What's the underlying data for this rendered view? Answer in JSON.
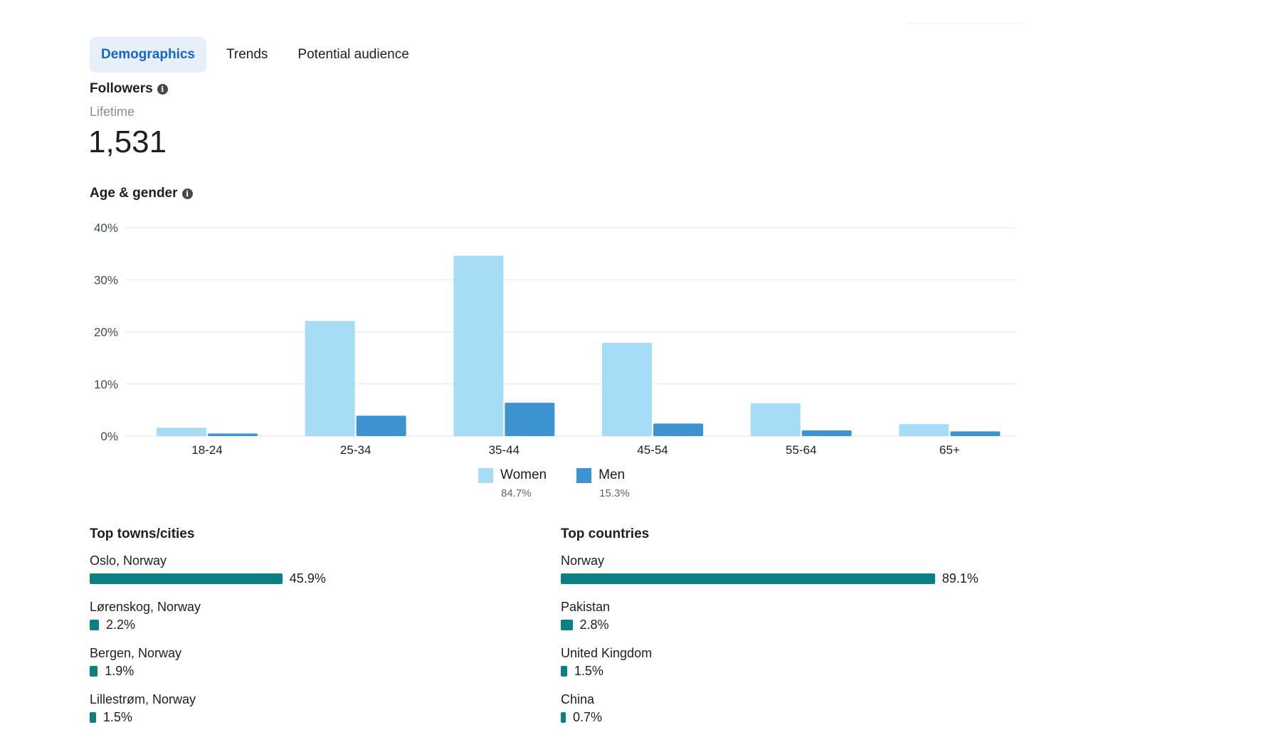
{
  "tabs": [
    {
      "label": "Demographics",
      "active": true
    },
    {
      "label": "Trends",
      "active": false
    },
    {
      "label": "Potential audience",
      "active": false
    }
  ],
  "followers": {
    "title": "Followers",
    "period": "Lifetime",
    "value": "1,531"
  },
  "age_gender": {
    "title": "Age & gender"
  },
  "chart_data": {
    "type": "bar",
    "categories": [
      "18-24",
      "25-34",
      "35-44",
      "45-54",
      "55-64",
      "65+"
    ],
    "series": [
      {
        "name": "Women",
        "share": "84.7%",
        "color": "#a7dcf6",
        "values": [
          1.6,
          22.1,
          34.6,
          17.9,
          6.3,
          2.3
        ]
      },
      {
        "name": "Men",
        "share": "15.3%",
        "color": "#3d93cf",
        "values": [
          0.5,
          3.9,
          6.4,
          2.4,
          1.1,
          0.9
        ]
      }
    ],
    "yticks": [
      "0%",
      "10%",
      "20%",
      "30%",
      "40%"
    ],
    "ylim": [
      0,
      40
    ],
    "grid": true,
    "legend": "bottom-center"
  },
  "top_cities": {
    "title": "Top towns/cities",
    "items": [
      {
        "label": "Oslo, Norway",
        "value": "45.9%",
        "pct": 45.9
      },
      {
        "label": "Lørenskog, Norway",
        "value": "2.2%",
        "pct": 2.2
      },
      {
        "label": "Bergen, Norway",
        "value": "1.9%",
        "pct": 1.9
      },
      {
        "label": "Lillestrøm, Norway",
        "value": "1.5%",
        "pct": 1.5
      }
    ]
  },
  "top_countries": {
    "title": "Top countries",
    "items": [
      {
        "label": "Norway",
        "value": "89.1%",
        "pct": 89.1
      },
      {
        "label": "Pakistan",
        "value": "2.8%",
        "pct": 2.8
      },
      {
        "label": "United Kingdom",
        "value": "1.5%",
        "pct": 1.5
      },
      {
        "label": "China",
        "value": "0.7%",
        "pct": 0.7
      }
    ]
  },
  "colors": {
    "accent": "#1467c4",
    "tab_active_bg": "#e7f0fa",
    "bar_teal": "#0b7f85",
    "women": "#a7dcf6",
    "men": "#3d93cf"
  }
}
